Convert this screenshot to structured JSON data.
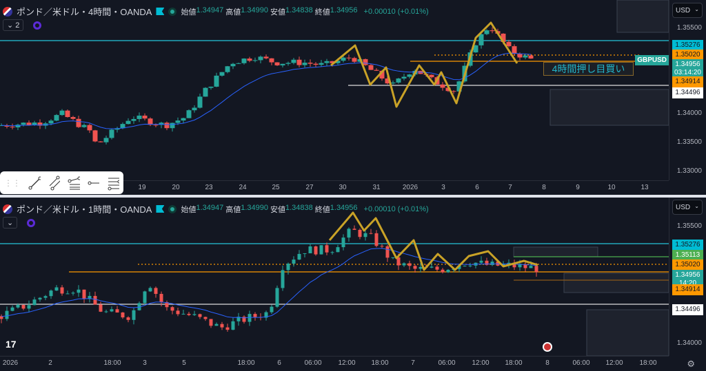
{
  "top": {
    "title": "ポンド／米ドル・4時間・OANDA",
    "ohlc": [
      {
        "k": "始値",
        "v": "1.34947"
      },
      {
        "k": "高値",
        "v": "1.34990"
      },
      {
        "k": "安値",
        "v": "1.34838"
      },
      {
        "k": "終値",
        "v": "1.34956"
      }
    ],
    "change": "+0.00010 (+0.01%)",
    "collapse": "2",
    "currency": "USD",
    "price_labels": [
      "1.35500",
      "1.34000",
      "1.33500",
      "1.33000"
    ],
    "tags": [
      {
        "v": "1.35276",
        "bg": "#00bcd4",
        "fg": "#131722"
      },
      {
        "v": "1.35020",
        "bg": "#ff9800",
        "fg": "#131722"
      },
      {
        "v": "1.34956",
        "sub": "03:14:20",
        "bg": "#26a69a",
        "fg": "#fff"
      },
      {
        "v": "1.34914",
        "bg": "#ff9800",
        "fg": "#131722"
      },
      {
        "v": "1.34496",
        "bg": "#ffffff",
        "fg": "#131722"
      }
    ],
    "symbol": "GBPUSD",
    "annotation": "4時間押し目買い",
    "time_labels": [
      "19",
      "20",
      "23",
      "24",
      "25",
      "27",
      "30",
      "31",
      "2026",
      "3",
      "6",
      "7",
      "8",
      "9",
      "10",
      "13"
    ]
  },
  "bottom": {
    "title": "ポンド／米ドル・1時間・OANDA",
    "ohlc": [
      {
        "k": "始値",
        "v": "1.34947"
      },
      {
        "k": "高値",
        "v": "1.34990"
      },
      {
        "k": "安値",
        "v": "1.34838"
      },
      {
        "k": "終値",
        "v": "1.34956"
      }
    ],
    "change": "+0.00010 (+0.01%)",
    "currency": "USD",
    "price_labels": [
      "1.35500",
      "1.34000"
    ],
    "tags": [
      {
        "v": "1.35276",
        "bg": "#00bcd4",
        "fg": "#131722"
      },
      {
        "v": "1.35113",
        "bg": "#4caf50",
        "fg": "#fff"
      },
      {
        "v": "1.35020",
        "bg": "#ff9800",
        "fg": "#131722"
      },
      {
        "v": "1.34956",
        "sub": "14:20",
        "bg": "#26a69a",
        "fg": "#fff"
      },
      {
        "v": "1.34914",
        "bg": "#ff9800",
        "fg": "#131722"
      },
      {
        "v": "1.34496",
        "bg": "#ffffff",
        "fg": "#131722"
      }
    ],
    "time_labels": [
      "2026",
      "2",
      "18:00",
      "3",
      "5",
      "18:00",
      "6",
      "06:00",
      "12:00",
      "18:00",
      "7",
      "06:00",
      "12:00",
      "18:00",
      "8",
      "06:00",
      "12:00",
      "18:00"
    ]
  },
  "toolbar": [
    "trend-line",
    "parallel-channel",
    "fib-retracement",
    "horizontal-ray",
    "pitchfork-lines"
  ],
  "colors": {
    "up": "#26a69a",
    "down": "#ef5350",
    "ma": "#2962ff",
    "zigzag": "#c9a227"
  }
}
